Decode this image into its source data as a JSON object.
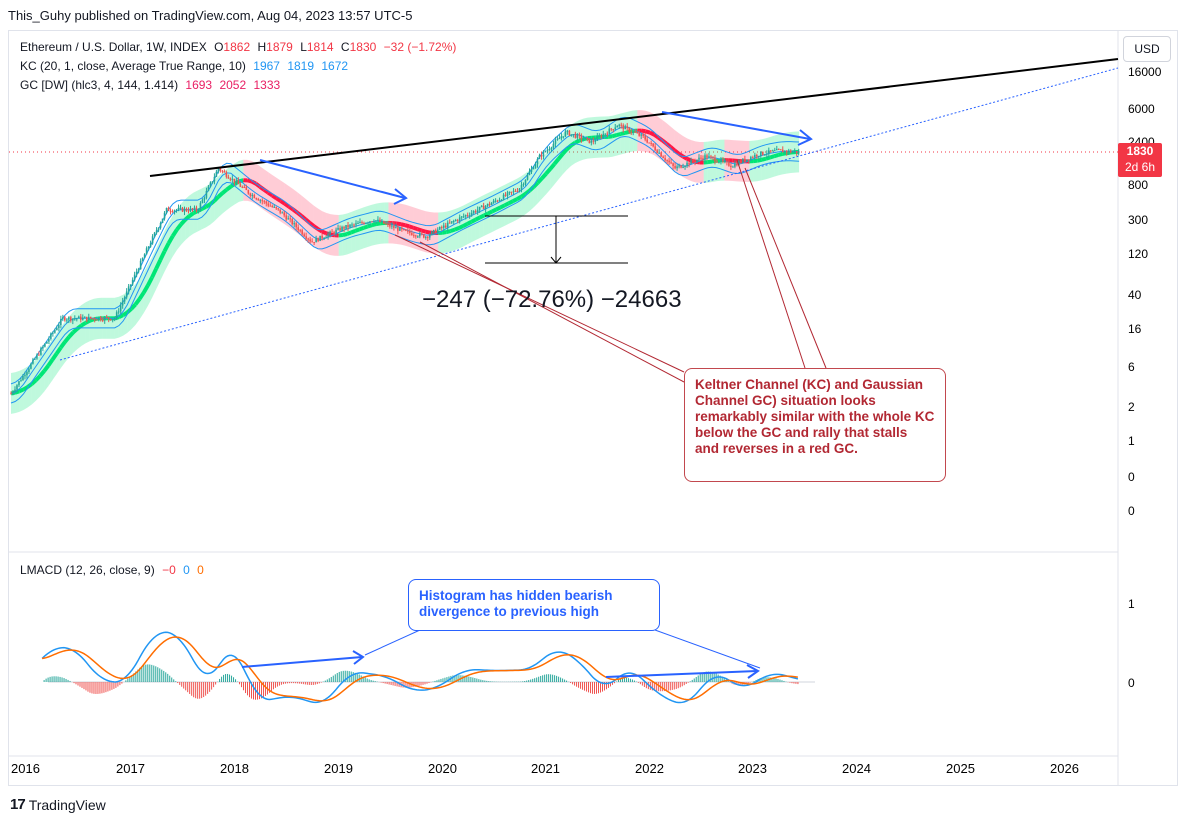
{
  "header": "This_Guhy published on TradingView.com, Aug 04, 2023 13:57 UTC-5",
  "legend": {
    "line1": {
      "label": "Ethereum / U.S. Dollar, 1W, INDEX",
      "o_key": "O",
      "o": "1862",
      "h_key": "H",
      "h": "1879",
      "l_key": "L",
      "l": "1814",
      "c_key": "C",
      "c": "1830",
      "chg": "−32 (−1.72%)"
    },
    "line2": {
      "label": "KC (20, 1, close, Average True Range, 10)",
      "v1": "1967",
      "v2": "1819",
      "v3": "1672"
    },
    "line3": {
      "label": "GC [DW] (hlc3, 4, 144, 1.414)",
      "v1": "1693",
      "v2": "2052",
      "v3": "1333"
    },
    "lmacd": {
      "label": "LMACD (12, 26, close, 9)",
      "v1": "−0",
      "v2": "0",
      "v3": "0"
    }
  },
  "currency_button": "USD",
  "price_tag": {
    "price": "1830",
    "countdown": "2d 6h"
  },
  "measure_label": "−247 (−72.76%) −24663",
  "callouts": {
    "red": "Keltner Channel (KC) and Gaussian Channel GC) situation looks remarkably similar with the whole KC below the GC and rally that stalls and reverses in a red GC.",
    "blue": "Histogram has hidden bearish divergence to previous high"
  },
  "footer": {
    "brand": "TradingView"
  },
  "colors": {
    "up": "#26a69a",
    "down": "#ef5350",
    "gc_green": "#00e676",
    "gc_red": "#ff1744",
    "kc": "#2196f3",
    "price_tag": "#f23645",
    "annotation_red": "#b22833",
    "annotation_blue": "#2962ff"
  },
  "chart_data": [
    {
      "type": "candlestick",
      "scale": "log",
      "y_ticks": [
        "16000",
        "6000",
        "2400",
        "800",
        "300",
        "120",
        "40",
        "16",
        "6",
        "2",
        "1",
        "0",
        "0"
      ],
      "x_ticks": [
        "2016",
        "2017",
        "2018",
        "2019",
        "2020",
        "2021",
        "2022",
        "2023",
        "2024",
        "2025",
        "2026"
      ],
      "x": [
        2016.0,
        2016.5,
        2017.0,
        2017.3,
        2017.5,
        2017.8,
        2018.0,
        2018.3,
        2018.6,
        2018.9,
        2019.2,
        2019.5,
        2019.8,
        2020.0,
        2020.3,
        2020.6,
        2020.9,
        2021.1,
        2021.35,
        2021.6,
        2021.85,
        2022.1,
        2022.4,
        2022.7,
        2022.95,
        2023.2,
        2023.4,
        2023.6
      ],
      "close": [
        0.95,
        10,
        10,
        80,
        300,
        300,
        1100,
        500,
        280,
        110,
        170,
        220,
        150,
        130,
        220,
        350,
        580,
        1600,
        3400,
        2500,
        4300,
        2900,
        1100,
        1600,
        1200,
        1700,
        1900,
        1830
      ],
      "series": [
        {
          "name": "KC (20, 1, close, Average True Range, 10)",
          "last": [
            1967,
            1819,
            1672
          ]
        },
        {
          "name": "GC [DW] (hlc3, 4, 144, 1.414)",
          "last": [
            1693,
            2052,
            1333
          ]
        }
      ]
    },
    {
      "type": "bar",
      "y_ticks": [
        "1",
        "0"
      ],
      "series": [
        {
          "name": "LMACD (12, 26, close, 9)",
          "last": [
            "−0",
            "0",
            "0"
          ]
        }
      ]
    }
  ]
}
